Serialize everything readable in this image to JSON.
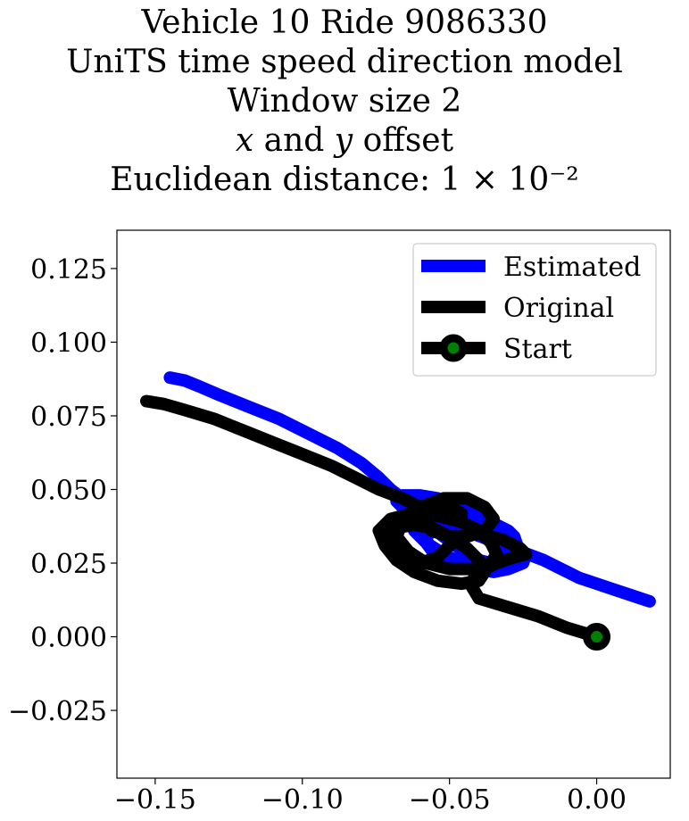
{
  "chart_data": {
    "type": "line",
    "title_lines": [
      "Vehicle 10 Ride 9086330",
      "UniTS time speed direction model",
      "Window size 2",
      "x and y offset",
      "Euclidean distance: 1 × 10⁻²"
    ],
    "xlabel": "",
    "ylabel": "",
    "xlim": [
      -0.163,
      0.025
    ],
    "ylim": [
      -0.048,
      0.138
    ],
    "x_ticks": [
      -0.15,
      -0.1,
      -0.05,
      0.0
    ],
    "x_tick_labels": [
      "−0.15",
      "−0.10",
      "−0.05",
      "0.00"
    ],
    "y_ticks": [
      0.125,
      0.1,
      0.075,
      0.05,
      0.025,
      0.0,
      -0.025
    ],
    "y_tick_labels": [
      "0.125",
      "0.100",
      "0.075",
      "0.050",
      "0.025",
      "0.000",
      "−0.025"
    ],
    "grid": false,
    "legend_position": "top-right",
    "series": [
      {
        "name": "Estimated",
        "color": "#0000ff",
        "x": [
          -0.145,
          -0.14,
          -0.135,
          -0.128,
          -0.118,
          -0.108,
          -0.098,
          -0.088,
          -0.08,
          -0.074,
          -0.07,
          -0.066,
          -0.06,
          -0.054,
          -0.05,
          -0.046,
          -0.042,
          -0.038,
          -0.034,
          -0.03,
          -0.028,
          -0.027,
          -0.028,
          -0.032,
          -0.036,
          -0.04,
          -0.044,
          -0.048,
          -0.052,
          -0.056,
          -0.058,
          -0.062,
          -0.066,
          -0.068,
          -0.066,
          -0.06,
          -0.054,
          -0.048,
          -0.044,
          -0.04,
          -0.036,
          -0.033,
          -0.031,
          -0.03,
          -0.031,
          -0.034,
          -0.038,
          -0.044,
          -0.05,
          -0.055,
          -0.058,
          -0.057,
          -0.052,
          -0.046,
          -0.04,
          -0.034,
          -0.028,
          -0.024,
          -0.025,
          -0.03,
          -0.035,
          -0.04,
          -0.046,
          -0.052,
          -0.058,
          -0.062,
          -0.063,
          -0.058,
          -0.05,
          -0.042,
          -0.034,
          -0.026,
          -0.018,
          -0.012,
          -0.006,
          0.0,
          0.006,
          0.012,
          0.018
        ],
        "y": [
          0.088,
          0.087,
          0.085,
          0.082,
          0.078,
          0.074,
          0.069,
          0.064,
          0.059,
          0.054,
          0.05,
          0.047,
          0.045,
          0.044,
          0.043,
          0.042,
          0.04,
          0.039,
          0.038,
          0.036,
          0.034,
          0.031,
          0.028,
          0.026,
          0.025,
          0.026,
          0.028,
          0.031,
          0.034,
          0.037,
          0.04,
          0.042,
          0.044,
          0.046,
          0.048,
          0.048,
          0.047,
          0.045,
          0.043,
          0.041,
          0.039,
          0.037,
          0.034,
          0.031,
          0.028,
          0.026,
          0.025,
          0.024,
          0.025,
          0.028,
          0.032,
          0.036,
          0.039,
          0.04,
          0.039,
          0.036,
          0.032,
          0.028,
          0.025,
          0.023,
          0.022,
          0.023,
          0.025,
          0.028,
          0.032,
          0.036,
          0.04,
          0.04,
          0.038,
          0.035,
          0.032,
          0.029,
          0.026,
          0.023,
          0.02,
          0.018,
          0.016,
          0.014,
          0.012
        ]
      },
      {
        "name": "Original",
        "color": "#000000",
        "x": [
          0.0,
          -0.01,
          -0.02,
          -0.03,
          -0.04,
          -0.043,
          -0.04,
          -0.034,
          -0.028,
          -0.024,
          -0.026,
          -0.032,
          -0.04,
          -0.046,
          -0.05,
          -0.054,
          -0.06,
          -0.066,
          -0.07,
          -0.071,
          -0.068,
          -0.062,
          -0.056,
          -0.05,
          -0.044,
          -0.04,
          -0.038,
          -0.04,
          -0.046,
          -0.054,
          -0.062,
          -0.068,
          -0.072,
          -0.074,
          -0.07,
          -0.062,
          -0.054,
          -0.046,
          -0.04,
          -0.036,
          -0.034,
          -0.036,
          -0.042,
          -0.05,
          -0.058,
          -0.064,
          -0.068,
          -0.066,
          -0.06,
          -0.052,
          -0.044,
          -0.038,
          -0.035,
          -0.038,
          -0.044,
          -0.05,
          -0.056,
          -0.06,
          -0.06,
          -0.056,
          -0.05,
          -0.046,
          -0.046,
          -0.05,
          -0.058,
          -0.066,
          -0.074,
          -0.082,
          -0.09,
          -0.1,
          -0.11,
          -0.12,
          -0.13,
          -0.14,
          -0.147,
          -0.153
        ],
        "y": [
          0.0,
          0.003,
          0.007,
          0.01,
          0.013,
          0.018,
          0.022,
          0.025,
          0.027,
          0.028,
          0.03,
          0.033,
          0.035,
          0.034,
          0.031,
          0.027,
          0.025,
          0.026,
          0.03,
          0.034,
          0.037,
          0.038,
          0.037,
          0.034,
          0.03,
          0.026,
          0.022,
          0.019,
          0.018,
          0.019,
          0.022,
          0.026,
          0.031,
          0.036,
          0.04,
          0.042,
          0.041,
          0.039,
          0.036,
          0.032,
          0.028,
          0.025,
          0.023,
          0.023,
          0.025,
          0.029,
          0.034,
          0.039,
          0.044,
          0.047,
          0.047,
          0.044,
          0.04,
          0.036,
          0.034,
          0.034,
          0.036,
          0.04,
          0.043,
          0.045,
          0.044,
          0.042,
          0.04,
          0.04,
          0.043,
          0.047,
          0.05,
          0.054,
          0.058,
          0.062,
          0.066,
          0.07,
          0.074,
          0.077,
          0.079,
          0.08
        ]
      }
    ],
    "start_marker": {
      "name": "Start",
      "x": 0.0,
      "y": 0.0,
      "edge_color": "#000000",
      "face_color": "#008000"
    },
    "legend": [
      {
        "label": "Estimated",
        "color": "#0000ff",
        "marker": false
      },
      {
        "label": "Original",
        "color": "#000000",
        "marker": false
      },
      {
        "label": "Start",
        "color": "#000000",
        "marker": true,
        "marker_face": "#008000"
      }
    ]
  }
}
